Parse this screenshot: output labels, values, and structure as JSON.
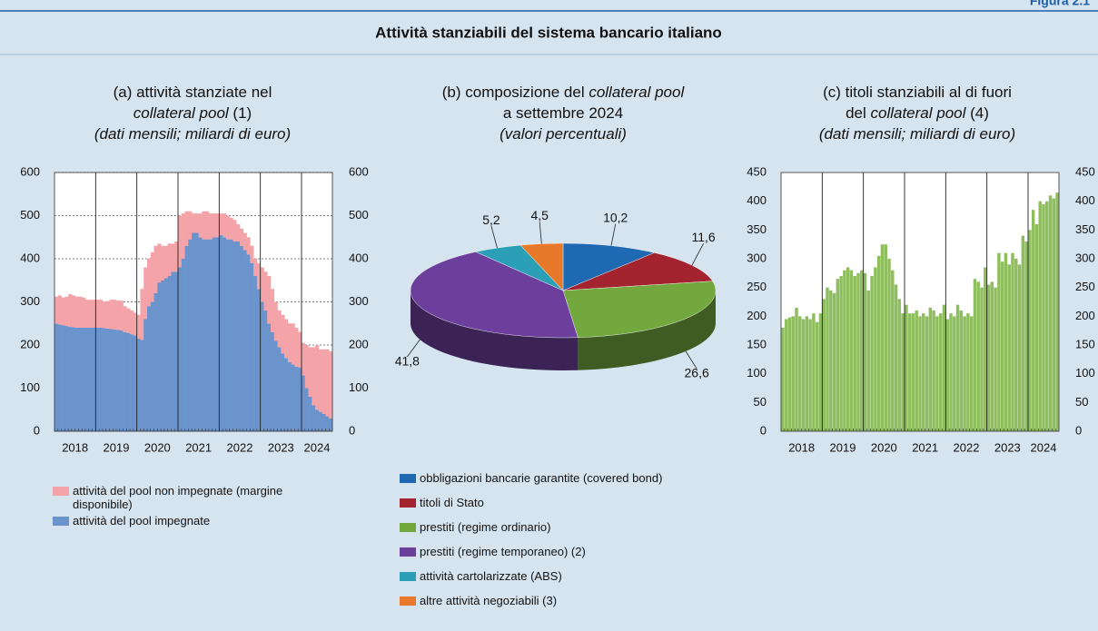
{
  "header": {
    "figure": "Figura 2.1",
    "title": "Attività stanziabili del sistema bancario italiano"
  },
  "chart_data": [
    {
      "type": "bar",
      "stacked": true,
      "title": [
        [
          {
            "text": "(a) attività stanziate nel"
          }
        ],
        [
          {
            "text": "collateral pool",
            "italic": true
          },
          {
            "text": " (1)"
          }
        ],
        [
          {
            "text": "(dati mensili; miliardi di euro)",
            "italic": true
          }
        ]
      ],
      "categories": [
        null,
        null,
        null,
        null,
        null,
        null,
        null,
        null,
        null,
        null,
        null,
        null,
        null,
        null,
        null,
        null,
        null,
        null,
        null,
        null,
        null,
        null,
        null,
        null,
        null,
        null,
        null,
        null,
        null,
        null,
        null,
        null,
        null,
        null,
        null,
        null,
        null,
        null,
        null,
        null,
        null,
        null,
        null,
        null,
        null,
        null,
        null,
        null,
        null,
        null,
        null,
        null,
        null,
        null,
        null,
        null,
        null,
        null,
        null,
        null,
        null,
        null,
        null,
        null,
        null,
        null,
        null,
        null,
        null,
        null,
        null,
        null,
        null,
        null,
        null,
        null,
        null,
        null,
        null,
        null,
        null
      ],
      "year_labels": [
        "2018",
        "2019",
        "2020",
        "2021",
        "2022",
        "2023",
        "2024"
      ],
      "series": [
        {
          "name": "attività del pool non impegnate (margine disponibile)",
          "color": "#f4a3a8",
          "values": [
            62,
            67,
            64,
            68,
            76,
            74,
            72,
            72,
            70,
            65,
            65,
            65,
            65,
            65,
            61,
            64,
            68,
            69,
            68,
            69,
            60,
            57,
            55,
            53,
            55,
            118,
            120,
            110,
            115,
            110,
            90,
            80,
            75,
            75,
            65,
            70,
            120,
            105,
            80,
            65,
            45,
            45,
            55,
            65,
            65,
            60,
            55,
            55,
            50,
            55,
            55,
            50,
            50,
            40,
            40,
            40,
            40,
            40,
            40,
            60,
            80,
            90,
            110,
            100,
            90,
            85,
            90,
            90,
            90,
            95,
            90,
            82,
            75,
            100,
            115,
            135,
            150,
            145,
            150,
            155,
            155
          ]
        },
        {
          "name": "attività del pool impegnate",
          "color": "#6b93cc",
          "values": [
            250,
            248,
            246,
            244,
            242,
            241,
            240,
            240,
            240,
            240,
            240,
            240,
            240,
            240,
            239,
            238,
            237,
            236,
            235,
            234,
            230,
            228,
            225,
            222,
            215,
            212,
            260,
            290,
            300,
            320,
            345,
            350,
            355,
            360,
            370,
            370,
            380,
            400,
            430,
            445,
            460,
            460,
            450,
            445,
            445,
            445,
            450,
            450,
            455,
            450,
            445,
            445,
            440,
            440,
            430,
            420,
            410,
            390,
            360,
            330,
            300,
            280,
            250,
            230,
            210,
            195,
            180,
            170,
            160,
            155,
            150,
            148,
            130,
            100,
            80,
            60,
            50,
            45,
            40,
            35,
            30
          ]
        }
      ],
      "ylim": [
        0,
        600
      ],
      "yticks": [
        0,
        100,
        200,
        300,
        400,
        500,
        600
      ],
      "y2lim": [
        0,
        600
      ],
      "y2ticks": [
        0,
        100,
        200,
        300,
        400,
        500,
        600
      ],
      "grid": true
    },
    {
      "type": "pie",
      "title": [
        [
          {
            "text": "(b) composizione del "
          },
          {
            "text": "collateral pool",
            "italic": true
          }
        ],
        [
          {
            "text": "a settembre 2024"
          }
        ],
        [
          {
            "text": "(valori percentuali)",
            "italic": true
          }
        ]
      ],
      "categories": [
        "obbligazioni bancarie garantite (covered bond)",
        "titoli di Stato",
        "prestiti (regime ordinario)",
        "prestiti (regime temporaneo) (2)",
        "attività cartolarizzate (ABS)",
        "altre attività negoziabili (3)"
      ],
      "values": [
        10.2,
        11.6,
        26.6,
        41.8,
        5.2,
        4.5
      ],
      "value_labels": [
        "10,2",
        "11,6",
        "26,6",
        "41,8",
        "5,2",
        "4,5"
      ],
      "colors": [
        "#1f69b3",
        "#a3232e",
        "#72a83d",
        "#6b3f9b",
        "#2a9fb6",
        "#e8792a"
      ]
    },
    {
      "type": "bar",
      "title": [
        [
          {
            "text": "(c) titoli stanziabili al di fuori"
          }
        ],
        [
          {
            "text": "del "
          },
          {
            "text": "collateral pool",
            "italic": true
          },
          {
            "text": " (4)"
          }
        ],
        [
          {
            "text": "(dati mensili; miliardi di euro)",
            "italic": true
          }
        ]
      ],
      "categories": [
        null,
        null,
        null,
        null,
        null,
        null,
        null,
        null,
        null,
        null,
        null,
        null,
        null,
        null,
        null,
        null,
        null,
        null,
        null,
        null,
        null,
        null,
        null,
        null,
        null,
        null,
        null,
        null,
        null,
        null,
        null,
        null,
        null,
        null,
        null,
        null,
        null,
        null,
        null,
        null,
        null,
        null,
        null,
        null,
        null,
        null,
        null,
        null,
        null,
        null,
        null,
        null,
        null,
        null,
        null,
        null,
        null,
        null,
        null,
        null,
        null,
        null,
        null,
        null,
        null,
        null,
        null,
        null,
        null,
        null,
        null,
        null,
        null,
        null,
        null,
        null,
        null,
        null,
        null,
        null,
        null
      ],
      "year_labels": [
        "2018",
        "2019",
        "2020",
        "2021",
        "2022",
        "2023",
        "2024"
      ],
      "color": "#8fbe5f",
      "values": [
        180,
        195,
        198,
        200,
        215,
        200,
        195,
        200,
        195,
        205,
        190,
        205,
        230,
        250,
        245,
        240,
        265,
        270,
        280,
        285,
        280,
        270,
        275,
        280,
        275,
        245,
        270,
        285,
        305,
        325,
        325,
        300,
        280,
        255,
        230,
        205,
        220,
        205,
        205,
        210,
        200,
        205,
        200,
        215,
        210,
        200,
        205,
        220,
        195,
        205,
        200,
        220,
        210,
        200,
        205,
        200,
        265,
        260,
        250,
        285,
        255,
        260,
        250,
        310,
        295,
        310,
        290,
        310,
        300,
        290,
        340,
        330,
        350,
        385,
        360,
        400,
        395,
        400,
        410,
        405,
        415
      ],
      "ylim": [
        0,
        450
      ],
      "yticks": [
        0,
        50,
        100,
        150,
        200,
        250,
        300,
        350,
        400,
        450
      ],
      "y2lim": [
        0,
        450
      ],
      "y2ticks": [
        0,
        50,
        100,
        150,
        200,
        250,
        300,
        350,
        400,
        450
      ],
      "grid": false
    }
  ]
}
